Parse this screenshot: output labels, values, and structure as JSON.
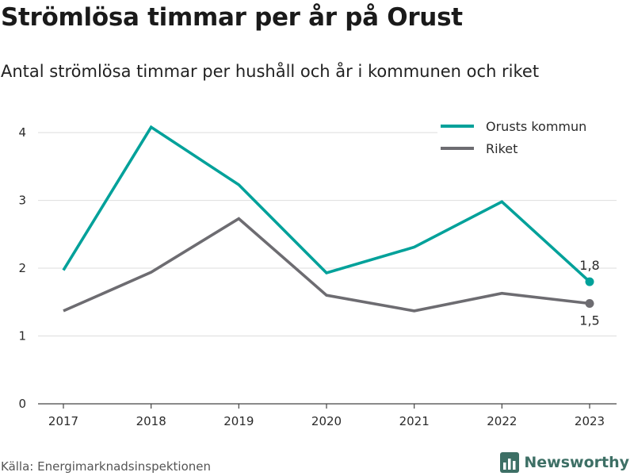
{
  "header": {
    "title": "Strömlösa timmar per år på Orust",
    "subtitle": "Antal strömlösa timmar per hushåll och år i kommunen och riket"
  },
  "footer": {
    "source": "Källa: Energimarknadsinspektionen",
    "brand": "Newsworthy",
    "brand_icon": "bar-chart-logo-icon",
    "brand_color": "#3d6f65"
  },
  "chart_data": {
    "type": "line",
    "title": "Strömlösa timmar per år på Orust",
    "subtitle": "Antal strömlösa timmar per hushåll och år i kommunen och riket",
    "xlabel": "",
    "ylabel": "",
    "x": [
      2017,
      2018,
      2019,
      2020,
      2021,
      2022,
      2023
    ],
    "ylim": [
      0,
      4.2
    ],
    "yticks": [
      0,
      1,
      2,
      3,
      4
    ],
    "grid": true,
    "legend_position": "top-right",
    "series": [
      {
        "name": "Orusts kommun",
        "color": "#00a19a",
        "values": [
          1.97,
          4.08,
          3.23,
          1.93,
          2.31,
          2.98,
          1.8
        ],
        "end_label": "1,8",
        "end_label_position": "above"
      },
      {
        "name": "Riket",
        "color": "#6d6c71",
        "values": [
          1.37,
          1.94,
          2.73,
          1.6,
          1.37,
          1.63,
          1.48
        ],
        "end_label": "1,5",
        "end_label_position": "below"
      }
    ]
  }
}
